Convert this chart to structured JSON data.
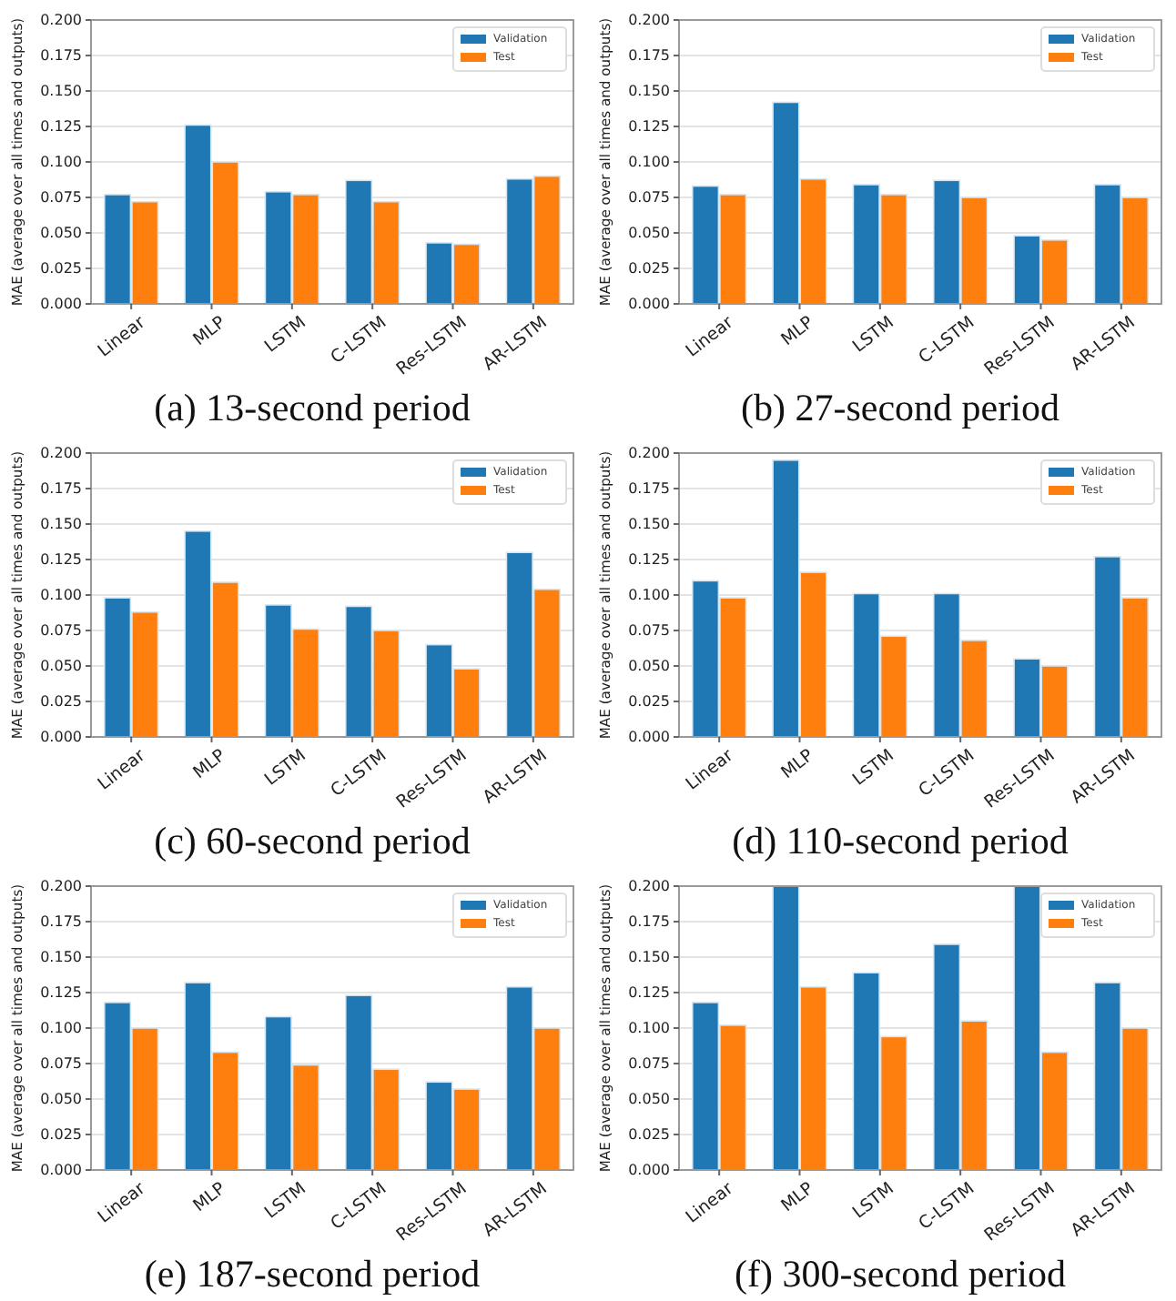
{
  "chart_data": [
    {
      "type": "bar",
      "title": "(a) 13-second period",
      "ylabel": "MAE (average over all times and outputs)",
      "categories": [
        "Linear",
        "MLP",
        "LSTM",
        "C-LSTM",
        "Res-LSTM",
        "AR-LSTM"
      ],
      "series": [
        {
          "name": "Validation",
          "color": "#1f77b4",
          "values": [
            0.077,
            0.126,
            0.079,
            0.087,
            0.043,
            0.088
          ]
        },
        {
          "name": "Test",
          "color": "#ff7f0e",
          "values": [
            0.072,
            0.1,
            0.077,
            0.072,
            0.042,
            0.09
          ]
        }
      ],
      "ylim": [
        0,
        0.2
      ],
      "yticks": [
        {
          "value": 0,
          "label": "0.000"
        },
        {
          "value": 0.025,
          "label": "0.025"
        },
        {
          "value": 0.05,
          "label": "0.050"
        },
        {
          "value": 0.075,
          "label": "0.075"
        },
        {
          "value": 0.1,
          "label": "0.100"
        },
        {
          "value": 0.125,
          "label": "0.125"
        },
        {
          "value": 0.15,
          "label": "0.150"
        },
        {
          "value": 0.175,
          "label": "0.175"
        },
        {
          "value": 0.2,
          "label": "0.200"
        }
      ],
      "grid": "y",
      "legend": "top right"
    },
    {
      "type": "bar",
      "title": "(b) 27-second period",
      "ylabel": "MAE (average over all times and outputs)",
      "categories": [
        "Linear",
        "MLP",
        "LSTM",
        "C-LSTM",
        "Res-LSTM",
        "AR-LSTM"
      ],
      "series": [
        {
          "name": "Validation",
          "color": "#1f77b4",
          "values": [
            0.083,
            0.142,
            0.084,
            0.087,
            0.048,
            0.084
          ]
        },
        {
          "name": "Test",
          "color": "#ff7f0e",
          "values": [
            0.077,
            0.088,
            0.077,
            0.075,
            0.045,
            0.075
          ]
        }
      ],
      "ylim": [
        0,
        0.2
      ],
      "yticks": [
        {
          "value": 0,
          "label": "0.000"
        },
        {
          "value": 0.025,
          "label": "0.025"
        },
        {
          "value": 0.05,
          "label": "0.050"
        },
        {
          "value": 0.075,
          "label": "0.075"
        },
        {
          "value": 0.1,
          "label": "0.100"
        },
        {
          "value": 0.125,
          "label": "0.125"
        },
        {
          "value": 0.15,
          "label": "0.150"
        },
        {
          "value": 0.175,
          "label": "0.175"
        },
        {
          "value": 0.2,
          "label": "0.200"
        }
      ],
      "grid": "y",
      "legend": "top right"
    },
    {
      "type": "bar",
      "title": "(c) 60-second period",
      "ylabel": "MAE (average over all times and outputs)",
      "categories": [
        "Linear",
        "MLP",
        "LSTM",
        "C-LSTM",
        "Res-LSTM",
        "AR-LSTM"
      ],
      "series": [
        {
          "name": "Validation",
          "color": "#1f77b4",
          "values": [
            0.098,
            0.145,
            0.093,
            0.092,
            0.065,
            0.13
          ]
        },
        {
          "name": "Test",
          "color": "#ff7f0e",
          "values": [
            0.088,
            0.109,
            0.076,
            0.075,
            0.048,
            0.104
          ]
        }
      ],
      "ylim": [
        0,
        0.2
      ],
      "yticks": [
        {
          "value": 0,
          "label": "0.000"
        },
        {
          "value": 0.025,
          "label": "0.025"
        },
        {
          "value": 0.05,
          "label": "0.050"
        },
        {
          "value": 0.075,
          "label": "0.075"
        },
        {
          "value": 0.1,
          "label": "0.100"
        },
        {
          "value": 0.125,
          "label": "0.125"
        },
        {
          "value": 0.15,
          "label": "0.150"
        },
        {
          "value": 0.175,
          "label": "0.175"
        },
        {
          "value": 0.2,
          "label": "0.200"
        }
      ],
      "grid": "y",
      "legend": "top right"
    },
    {
      "type": "bar",
      "title": "(d) 110-second period",
      "ylabel": "MAE (average over all times and outputs)",
      "categories": [
        "Linear",
        "MLP",
        "LSTM",
        "C-LSTM",
        "Res-LSTM",
        "AR-LSTM"
      ],
      "series": [
        {
          "name": "Validation",
          "color": "#1f77b4",
          "values": [
            0.11,
            0.195,
            0.101,
            0.101,
            0.055,
            0.127
          ]
        },
        {
          "name": "Test",
          "color": "#ff7f0e",
          "values": [
            0.098,
            0.116,
            0.071,
            0.068,
            0.05,
            0.098
          ]
        }
      ],
      "ylim": [
        0,
        0.2
      ],
      "yticks": [
        {
          "value": 0,
          "label": "0.000"
        },
        {
          "value": 0.025,
          "label": "0.025"
        },
        {
          "value": 0.05,
          "label": "0.050"
        },
        {
          "value": 0.075,
          "label": "0.075"
        },
        {
          "value": 0.1,
          "label": "0.100"
        },
        {
          "value": 0.125,
          "label": "0.125"
        },
        {
          "value": 0.15,
          "label": "0.150"
        },
        {
          "value": 0.175,
          "label": "0.175"
        },
        {
          "value": 0.2,
          "label": "0.200"
        }
      ],
      "grid": "y",
      "legend": "top right"
    },
    {
      "type": "bar",
      "title": "(e) 187-second period",
      "ylabel": "MAE (average over all times and outputs)",
      "categories": [
        "Linear",
        "MLP",
        "LSTM",
        "C-LSTM",
        "Res-LSTM",
        "AR-LSTM"
      ],
      "series": [
        {
          "name": "Validation",
          "color": "#1f77b4",
          "values": [
            0.118,
            0.132,
            0.108,
            0.123,
            0.062,
            0.129
          ]
        },
        {
          "name": "Test",
          "color": "#ff7f0e",
          "values": [
            0.1,
            0.083,
            0.074,
            0.071,
            0.057,
            0.1
          ]
        }
      ],
      "ylim": [
        0,
        0.2
      ],
      "yticks": [
        {
          "value": 0,
          "label": "0.000"
        },
        {
          "value": 0.025,
          "label": "0.025"
        },
        {
          "value": 0.05,
          "label": "0.050"
        },
        {
          "value": 0.075,
          "label": "0.075"
        },
        {
          "value": 0.1,
          "label": "0.100"
        },
        {
          "value": 0.125,
          "label": "0.125"
        },
        {
          "value": 0.15,
          "label": "0.150"
        },
        {
          "value": 0.175,
          "label": "0.175"
        },
        {
          "value": 0.2,
          "label": "0.200"
        }
      ],
      "grid": "y",
      "legend": "top right"
    },
    {
      "type": "bar",
      "title": "(f) 300-second period",
      "ylabel": "MAE (average over all times and outputs)",
      "categories": [
        "Linear",
        "MLP",
        "LSTM",
        "C-LSTM",
        "Res-LSTM",
        "AR-LSTM"
      ],
      "series": [
        {
          "name": "Validation",
          "color": "#1f77b4",
          "values": [
            0.118,
            0.2,
            0.139,
            0.159,
            0.2,
            0.132
          ]
        },
        {
          "name": "Test",
          "color": "#ff7f0e",
          "values": [
            0.102,
            0.129,
            0.094,
            0.105,
            0.083,
            0.1
          ]
        }
      ],
      "ylim": [
        0,
        0.2
      ],
      "yticks": [
        {
          "value": 0,
          "label": "0.000"
        },
        {
          "value": 0.025,
          "label": "0.025"
        },
        {
          "value": 0.05,
          "label": "0.050"
        },
        {
          "value": 0.075,
          "label": "0.075"
        },
        {
          "value": 0.1,
          "label": "0.100"
        },
        {
          "value": 0.125,
          "label": "0.125"
        },
        {
          "value": 0.15,
          "label": "0.150"
        },
        {
          "value": 0.175,
          "label": "0.175"
        },
        {
          "value": 0.2,
          "label": "0.200"
        }
      ],
      "grid": "y",
      "legend": "top right"
    }
  ]
}
